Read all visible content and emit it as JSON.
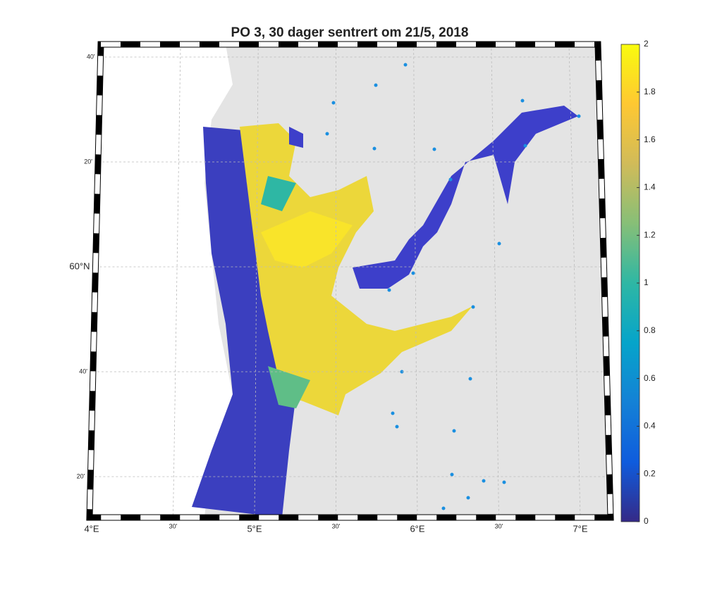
{
  "map": {
    "title": "PO 3, 30 dager sentrert om 21/5, 2018",
    "lon_ticks": [
      {
        "value": 4,
        "label": "4°E"
      },
      {
        "value": 4.5,
        "label": "30'"
      },
      {
        "value": 5,
        "label": "5°E"
      },
      {
        "value": 5.5,
        "label": "30'"
      },
      {
        "value": 6,
        "label": "6°E"
      },
      {
        "value": 6.5,
        "label": "30'"
      },
      {
        "value": 7,
        "label": "7°E"
      }
    ],
    "lat_ticks": [
      {
        "value": 60.6667,
        "label": "40'"
      },
      {
        "value": 60.3333,
        "label": "20'"
      },
      {
        "value": 60,
        "label": "60°N"
      },
      {
        "value": 59.6667,
        "label": "40'"
      },
      {
        "value": 59.3333,
        "label": "20'"
      }
    ],
    "colorbar": {
      "lim": [
        0,
        2
      ],
      "ticks": [
        0,
        0.2,
        0.4,
        0.6,
        0.8,
        1,
        1.2,
        1.4,
        1.6,
        1.8,
        2
      ],
      "colormap": [
        "#352a87",
        "#0f5cdd",
        "#1481d6",
        "#06a4ca",
        "#2eb7a4",
        "#87bf77",
        "#d1bb59",
        "#fec832",
        "#f9fb0e"
      ]
    }
  }
}
